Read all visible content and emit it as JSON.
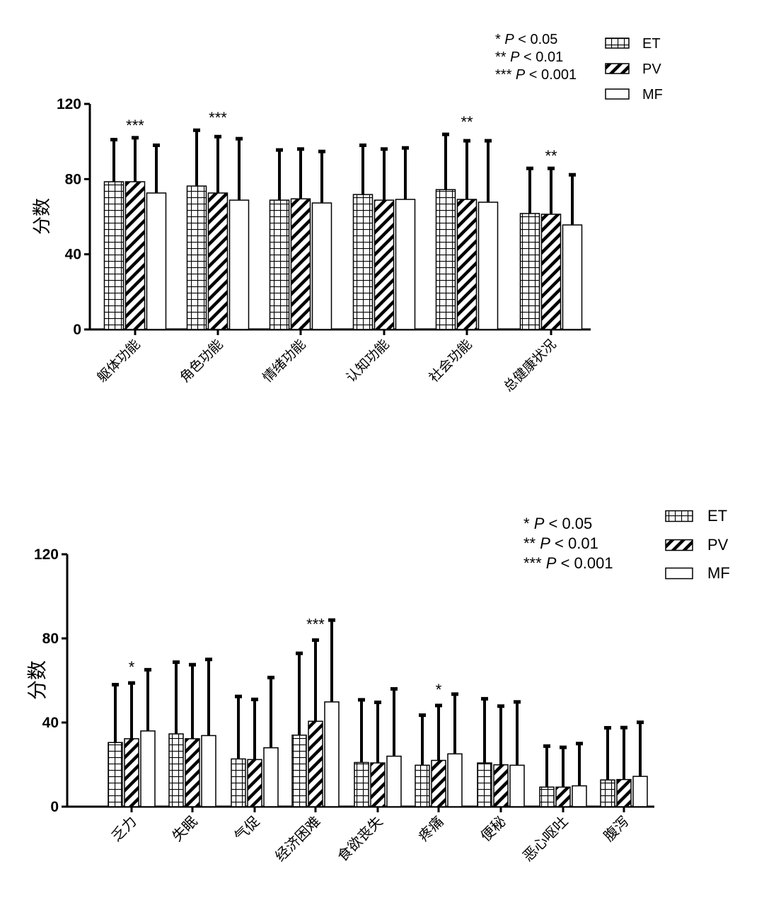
{
  "chart_data": [
    {
      "type": "bar",
      "title": "",
      "ylabel": "分数",
      "xlabel": "",
      "ylim": [
        0,
        120
      ],
      "yticks": [
        "0",
        "40",
        "80",
        "120"
      ],
      "grid": false,
      "legend_placement": "top-right",
      "categories": [
        "躯体功能",
        "角色功能",
        "情绪功能",
        "认知功能",
        "社会功能",
        "总健康状况"
      ],
      "series": [
        {
          "name": "ET",
          "pattern": "grid",
          "values": [
            78.6,
            76.3,
            68.8,
            71.8,
            74.4,
            61.7
          ],
          "error_upper": [
            101,
            106,
            95.5,
            98,
            103.8,
            85.7
          ]
        },
        {
          "name": "PV",
          "pattern": "diagonal",
          "values": [
            78.6,
            72.6,
            69.5,
            68.8,
            69.2,
            61.3
          ],
          "error_upper": [
            102,
            102.6,
            96,
            96,
            100.4,
            85.7
          ]
        },
        {
          "name": "MF",
          "pattern": "none",
          "values": [
            72.6,
            68.8,
            67.3,
            69.2,
            67.7,
            55.6
          ],
          "error_upper": [
            98,
            101.5,
            94.7,
            96.6,
            100.4,
            82.3
          ]
        }
      ],
      "significance_note": [
        "* P < 0.05",
        "** P < 0.01",
        "*** P < 0.001"
      ],
      "annotations": [
        {
          "category": 0,
          "text": "***"
        },
        {
          "category": 1,
          "text": "***"
        },
        {
          "category": 4,
          "text": "**"
        },
        {
          "category": 5,
          "text": "**"
        }
      ]
    },
    {
      "type": "bar",
      "title": "",
      "ylabel": "分数",
      "xlabel": "",
      "ylim": [
        0,
        120
      ],
      "yticks": [
        "0",
        "40",
        "80",
        "120"
      ],
      "grid": false,
      "legend_placement": "top-right",
      "categories": [
        "乏力",
        "失眠",
        "气促",
        "经济困难",
        "食欲丧失",
        "疼痛",
        "便秘",
        "恶心呕吐",
        "腹泻"
      ],
      "series": [
        {
          "name": "ET",
          "pattern": "grid",
          "values": [
            30.5,
            34.6,
            22.7,
            34,
            21,
            19.7,
            20.8,
            9.3,
            12.7
          ],
          "error_upper": [
            58,
            68.7,
            52.4,
            72.9,
            50.8,
            43.5,
            51.3,
            28.8,
            37.5
          ]
        },
        {
          "name": "PV",
          "pattern": "diagonal",
          "values": [
            32.3,
            32.3,
            22.4,
            40.6,
            20.8,
            22,
            19.9,
            9.3,
            12.9
          ],
          "error_upper": [
            58.8,
            67.5,
            51,
            79.2,
            49.6,
            48.1,
            47.8,
            28.2,
            37.6
          ]
        },
        {
          "name": "MF",
          "pattern": "none",
          "values": [
            36,
            33.8,
            28,
            49.8,
            24,
            25.1,
            19.7,
            9.9,
            14.4
          ],
          "error_upper": [
            65.1,
            70,
            61.4,
            88.7,
            56,
            53.5,
            49.8,
            30,
            40.1
          ]
        }
      ],
      "significance_note": [
        "* P < 0.05",
        "** P < 0.01",
        "*** P < 0.001"
      ],
      "annotations": [
        {
          "category": 0,
          "text": "*"
        },
        {
          "category": 3,
          "text": "***"
        },
        {
          "category": 5,
          "text": "*"
        }
      ]
    }
  ]
}
